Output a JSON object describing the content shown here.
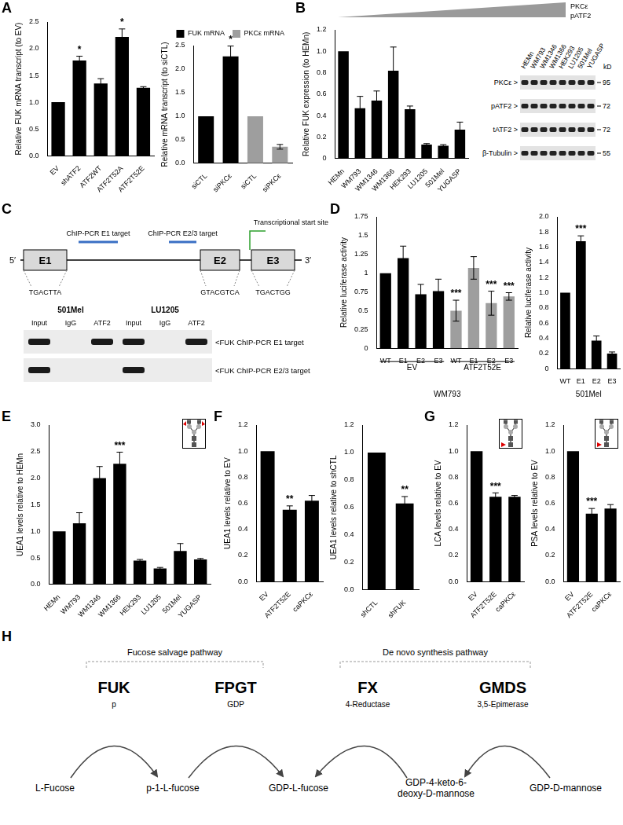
{
  "chart_data": [
    {
      "panel": "A",
      "type": "bar",
      "ylabel": "Relative FUK mRNA transcript (to EV)",
      "categories": [
        "EV",
        "shATF2",
        "ATF2WT",
        "ATF2T52A",
        "ATF2T52E"
      ],
      "values": [
        1.0,
        1.78,
        1.35,
        2.22,
        1.27
      ],
      "errors": [
        null,
        0.08,
        0.09,
        0.15,
        0.02
      ],
      "color": "#000000",
      "ylim": [
        0,
        2.5
      ],
      "yticks": [
        {
          "value": 0,
          "label": "0.0"
        },
        0.5,
        {
          "value": 1,
          "label": "1.0"
        },
        1.5,
        {
          "value": 2,
          "label": "2.0"
        },
        2.5
      ],
      "grid": false,
      "annotations": [
        {
          "text": "*",
          "category": "shATF2"
        },
        {
          "text": "*",
          "category": "ATF2T52A"
        }
      ]
    },
    {
      "type": "bar",
      "ylabel": "Relative mRNA transcript (to siCTL)",
      "groups": [
        {
          "label": "FUK mRNA",
          "color": "#000000",
          "categories": [
            "siCTL",
            "siPKCε"
          ],
          "values": [
            1.0,
            2.27
          ],
          "errors": [
            null,
            0.22
          ]
        },
        {
          "label": "PKCε mRNA",
          "color": "#9e9e9e",
          "categories": [
            "siCTL",
            "siPKCε"
          ],
          "values": [
            1.0,
            0.35
          ],
          "errors": [
            null,
            0.05
          ]
        }
      ],
      "legend": "top-right",
      "ylim": [
        0,
        2.5
      ],
      "yticks": [
        {
          "value": 0,
          "label": "0.0"
        },
        0.5,
        {
          "value": 1,
          "label": "1.0"
        },
        1.5,
        {
          "value": 2,
          "label": "2.0"
        },
        2.5
      ],
      "grid": false,
      "annotations": [
        {
          "text": "*",
          "group": "FUK mRNA",
          "category": "siPKCε"
        }
      ]
    },
    {
      "panel": "B",
      "type": "bar",
      "ylabel": "Relative FUK expression (to HEMn)",
      "categories": [
        "HEMn",
        "WM793",
        "WM1346",
        "WM1366",
        "HEK293",
        "LU1205",
        "501Mel",
        "YUGASP"
      ],
      "values": [
        1.0,
        0.47,
        0.54,
        0.82,
        0.46,
        0.13,
        0.12,
        0.27
      ],
      "errors": [
        null,
        0.11,
        0.09,
        0.22,
        0.03,
        0.01,
        0.01,
        0.07
      ],
      "color": "#000000",
      "ylim": [
        0,
        1.2
      ],
      "yticks": [
        0,
        0.2,
        0.4,
        0.6,
        0.8,
        {
          "value": 1,
          "label": "1.0"
        },
        1.2
      ],
      "grid": false
    },
    {
      "panel": "D",
      "type": "bar",
      "ylabel": "Relative luciferase activity",
      "xlabel": "WM793",
      "groups": [
        {
          "label": "EV",
          "color": "#000000",
          "categories": [
            "WT",
            "E1",
            "E2",
            "E3"
          ],
          "values": [
            1.0,
            1.2,
            0.72,
            0.76
          ],
          "errors": [
            null,
            0.16,
            0.13,
            0.16
          ]
        },
        {
          "label": "ATF2T52E",
          "color": "#9e9e9e",
          "categories": [
            "WT",
            "E1",
            "E2",
            "E3"
          ],
          "values": [
            0.5,
            1.07,
            0.6,
            0.69
          ],
          "errors": [
            0.14,
            0.15,
            0.16,
            0.05
          ]
        }
      ],
      "ylim": [
        0,
        1.75
      ],
      "yticks": [
        0,
        0.25,
        0.5,
        0.75,
        1,
        1.25,
        1.5,
        1.75
      ],
      "grid": false,
      "annotations": [
        {
          "text": "***",
          "group": "ATF2T52E",
          "category": "WT"
        },
        {
          "text": "***",
          "group": "ATF2T52E",
          "category": "E2"
        },
        {
          "text": "***",
          "group": "ATF2T52E",
          "category": "E3"
        }
      ]
    },
    {
      "type": "bar",
      "ylabel": "Relative luciferase activity",
      "xlabel": "501Mel",
      "categories": [
        "WT",
        "E1",
        "E2",
        "E3"
      ],
      "values": [
        1.0,
        1.68,
        0.37,
        0.2
      ],
      "errors": [
        null,
        0.07,
        0.06,
        0.02
      ],
      "color": "#000000",
      "ylim": [
        0,
        2
      ],
      "yticks": [
        0,
        0.2,
        0.4,
        0.6,
        0.8,
        {
          "value": 1,
          "label": "1.0"
        },
        1.2,
        1.4,
        1.6,
        1.8,
        {
          "value": 2,
          "label": "2.0"
        }
      ],
      "grid": false,
      "annotations": [
        {
          "text": "***",
          "category": "E1"
        }
      ]
    },
    {
      "panel": "E",
      "type": "bar",
      "ylabel": "UEA1 levels relative to HEMn",
      "categories": [
        "HEMn",
        "WM793",
        "WM1346",
        "WM1366",
        "HEK293",
        "LU1205",
        "501Mel",
        "YUGASP"
      ],
      "values": [
        1.0,
        1.15,
        2.0,
        2.27,
        0.45,
        0.3,
        0.63,
        0.47
      ],
      "errors": [
        null,
        0.2,
        0.22,
        0.22,
        0.02,
        0.02,
        0.14,
        0.02
      ],
      "color": "#000000",
      "ylim": [
        0,
        3
      ],
      "yticks": [
        {
          "value": 0,
          "label": "0.0"
        },
        0.5,
        {
          "value": 1,
          "label": "1.0"
        },
        1.5,
        {
          "value": 2,
          "label": "2.0"
        },
        2.5,
        {
          "value": 3,
          "label": "3.0"
        }
      ],
      "grid": false,
      "annotations": [
        {
          "text": "***",
          "category": "WM1366"
        }
      ]
    },
    {
      "panel": "F",
      "type": "bar",
      "ylabel": "UEA1 levels relative to EV",
      "categories": [
        "EV",
        "ATF2T52E",
        "caPKCε"
      ],
      "values": [
        1.0,
        0.55,
        0.62
      ],
      "errors": [
        null,
        0.03,
        0.04
      ],
      "color": "#000000",
      "ylim": [
        0,
        1.2
      ],
      "yticks": [
        {
          "value": 0,
          "label": "0.0"
        },
        0.2,
        0.4,
        0.6,
        0.8,
        {
          "value": 1,
          "label": "1.0"
        },
        1.2
      ],
      "grid": false,
      "annotations": [
        {
          "text": "**",
          "category": "ATF2T52E"
        }
      ]
    },
    {
      "type": "bar",
      "ylabel": "UEA1 levels relative to shCTL",
      "categories": [
        "shCTL",
        "shFUK"
      ],
      "values": [
        1.0,
        0.63
      ],
      "errors": [
        null,
        0.05
      ],
      "color": "#000000",
      "ylim": [
        0,
        1.2
      ],
      "yticks": [
        {
          "value": 0,
          "label": "0.0"
        },
        0.2,
        0.4,
        0.6,
        0.8,
        {
          "value": 1,
          "label": "1.0"
        },
        1.2
      ],
      "grid": false,
      "annotations": [
        {
          "text": "**",
          "category": "shFUK"
        }
      ]
    },
    {
      "panel": "G",
      "type": "bar",
      "ylabel": "LCA levels relative to EV",
      "categories": [
        "EV",
        "ATF2T52E",
        "caPKCε"
      ],
      "values": [
        1.0,
        0.65,
        0.65
      ],
      "errors": [
        null,
        0.03,
        0.01
      ],
      "color": "#000000",
      "ylim": [
        0,
        1.2
      ],
      "yticks": [
        {
          "value": 0,
          "label": "0.0"
        },
        0.2,
        0.4,
        0.6,
        0.8,
        {
          "value": 1,
          "label": "1.0"
        },
        1.2
      ],
      "grid": false,
      "annotations": [
        {
          "text": "***",
          "category": "ATF2T52E"
        }
      ]
    },
    {
      "type": "bar",
      "ylabel": "PSA levels relative to EV",
      "categories": [
        "EV",
        "ATF2T52E",
        "caPKCε"
      ],
      "values": [
        1.0,
        0.52,
        0.56
      ],
      "errors": [
        null,
        0.04,
        0.03
      ],
      "color": "#000000",
      "ylim": [
        0,
        1.2
      ],
      "yticks": [
        {
          "value": 0,
          "label": "0.0"
        },
        0.2,
        0.4,
        0.6,
        0.8,
        {
          "value": 1,
          "label": "1.0"
        },
        1.2
      ],
      "grid": false,
      "annotations": [
        {
          "text": "***",
          "category": "ATF2T52E"
        }
      ]
    }
  ],
  "blot": {
    "header": [
      "PKCε",
      "pATF2"
    ],
    "lanes": [
      "HEMn",
      "WM793",
      "WM1346",
      "WM1366",
      "HEK293",
      "LU1205",
      "501Mel",
      "YUGASP"
    ],
    "unit": "kD",
    "rows": [
      {
        "label": "PKCε >",
        "size": 95
      },
      {
        "label": "pATF2 >",
        "size": 72
      },
      {
        "label": "tATF2 >",
        "size": 72
      },
      {
        "label": "β-Tubulin >",
        "size": 55
      }
    ]
  },
  "gene_diagram": {
    "panel": "C",
    "five": "5′",
    "three": "3′",
    "exons": [
      {
        "label": "E1",
        "site": "TGACTTA"
      },
      {
        "label": "E2",
        "site": "GTACGTCA"
      },
      {
        "label": "E3",
        "site": "TGACTGG"
      }
    ],
    "targets": [
      "ChIP-PCR E1 target",
      "ChIP-PCR E2/3 target"
    ],
    "tss": "Transcriptional start site"
  },
  "chip": {
    "cells": [
      "501Mel",
      "LU1205"
    ],
    "lanes": [
      "Input",
      "IgG",
      "ATF2"
    ],
    "rows": [
      {
        "label": "<FUK ChIP-PCR E1 target",
        "bands": [
          true,
          false,
          true,
          true,
          false,
          true
        ]
      },
      {
        "label": "<FUK ChIP-PCR E2/3 target",
        "bands": [
          true,
          false,
          false,
          true,
          false,
          false
        ]
      }
    ]
  },
  "pathway": {
    "panel": "H",
    "groups": [
      {
        "label": "Fucose salvage pathway",
        "enzymes": [
          {
            "name": "FUK",
            "note": "p"
          },
          {
            "name": "FPGT",
            "note": "GDP"
          }
        ]
      },
      {
        "label": "De novo synthesis pathway",
        "enzymes": [
          {
            "name": "FX",
            "note": "4-Reductase"
          },
          {
            "name": "GMDS",
            "note": "3,5-Epimerase"
          }
        ]
      }
    ],
    "metabolites": [
      [
        "L-Fucose"
      ],
      [
        "p-1-L-fucose"
      ],
      [
        "GDP-L-fucose"
      ],
      [
        "GDP-4-keto-6-",
        "deoxy-D-mannose"
      ],
      [
        "GDP-D-mannose"
      ]
    ]
  }
}
